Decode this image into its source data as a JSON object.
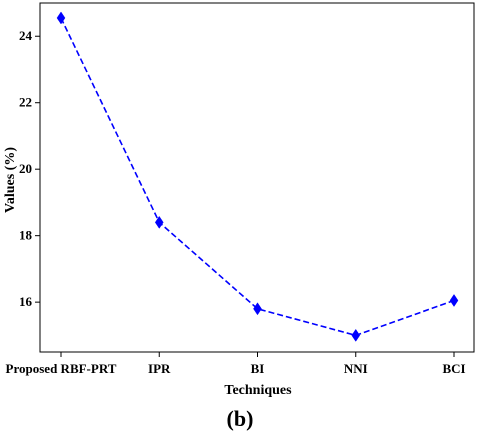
{
  "chart_data": {
    "type": "line",
    "categories": [
      "Proposed RBF-PRT",
      "IPR",
      "BI",
      "NNI",
      "BCI"
    ],
    "series": [
      {
        "values": [
          24.55,
          18.4,
          15.8,
          15.0,
          16.05
        ]
      }
    ],
    "xlabel": "Techniques",
    "ylabel": "Values (%)",
    "yticks": [
      16,
      18,
      20,
      22,
      24
    ],
    "ylim": [
      14.5,
      25.0
    ],
    "grid": false,
    "line_color": "#0000ff",
    "line_style": "dashed",
    "marker": "diamond"
  },
  "caption": "(b)"
}
